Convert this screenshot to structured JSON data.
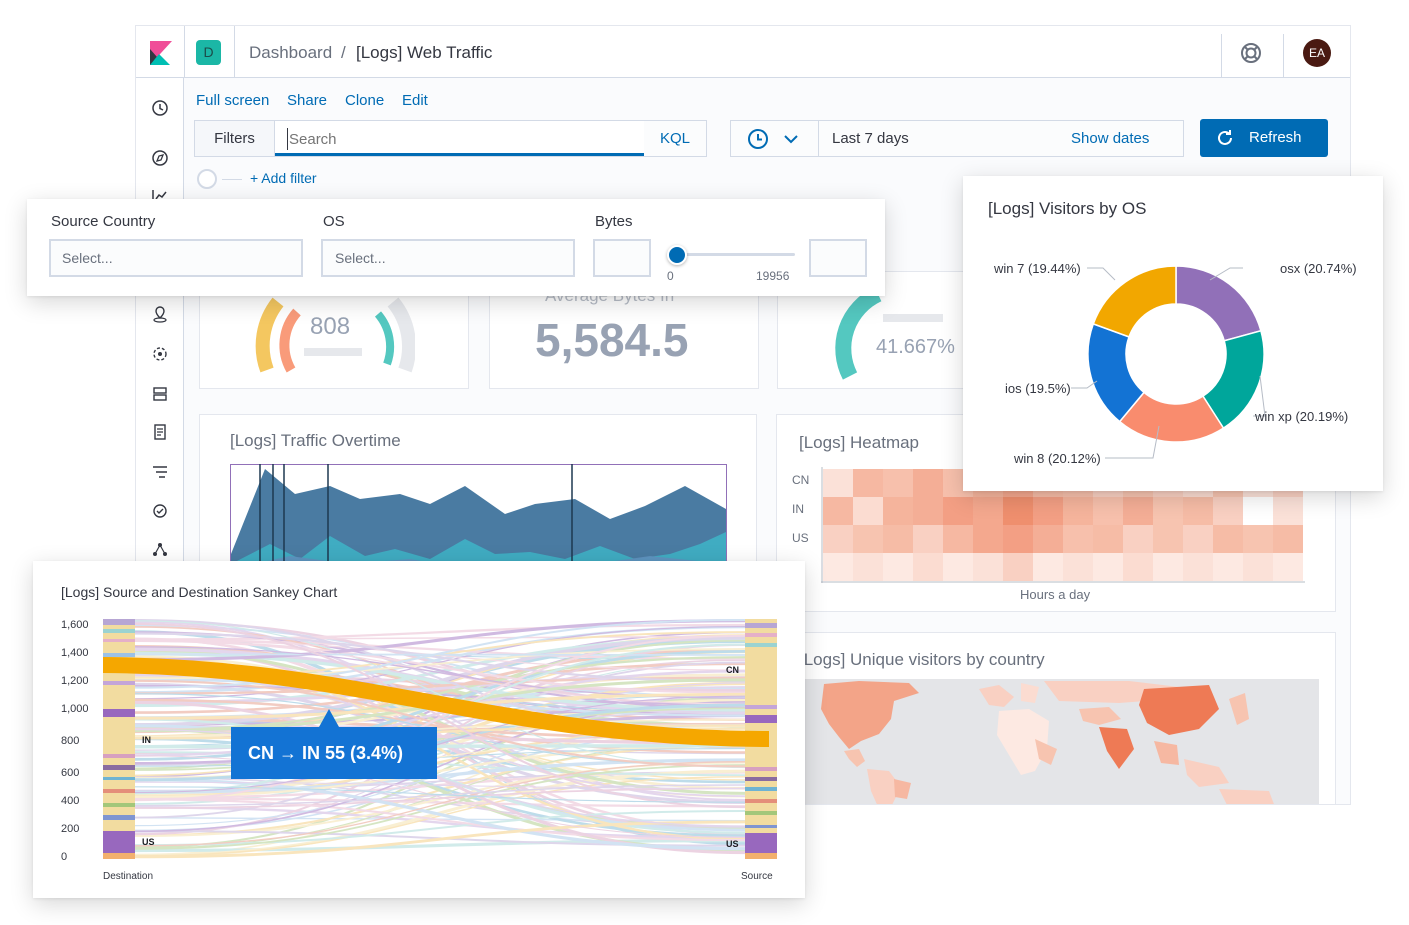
{
  "header": {
    "space_badge": "D",
    "breadcrumb_root": "Dashboard",
    "breadcrumb_sep": "/",
    "breadcrumb_current": "[Logs] Web Traffic",
    "avatar": "EA"
  },
  "toolbar": {
    "links": [
      "Full screen",
      "Share",
      "Clone",
      "Edit"
    ]
  },
  "query": {
    "filters_label": "Filters",
    "search_placeholder": "Search",
    "language": "KQL",
    "time_range": "Last 7 days",
    "show_dates": "Show dates",
    "refresh": "Refresh",
    "add_filter": "+ Add filter"
  },
  "controls": {
    "source_country_label": "Source Country",
    "source_country_placeholder": "Select...",
    "os_label": "OS",
    "os_placeholder": "Select...",
    "bytes_label": "Bytes",
    "bytes_min": "0",
    "bytes_max": "19956",
    "bytes_value": 0
  },
  "metrics": {
    "gauge1_value": "808",
    "avg_bytes_label": "Average Bytes In",
    "avg_bytes_value": "5,584.5",
    "gauge2_value": "41.667%"
  },
  "traffic": {
    "title": "[Logs] Traffic Overtime"
  },
  "heatmap": {
    "title": "[Logs] Heatmap",
    "rows": [
      "CN",
      "IN",
      "US"
    ],
    "xlabel": "Hours a day"
  },
  "map": {
    "title": "[Logs] Unique visitors by country"
  },
  "os_donut": {
    "title": "[Logs] Visitors by OS",
    "colors": [
      "#9170b8",
      "#00a69b",
      "#f98c6e",
      "#1373d4",
      "#f2a700"
    ]
  },
  "sankey": {
    "title": "[Logs] Source and Destination Sankey Chart",
    "yticks": [
      "1,600",
      "1,400",
      "1,200",
      "1,000",
      "800",
      "600",
      "400",
      "200",
      "0"
    ],
    "left_axis": "Destination",
    "right_axis": "Source",
    "left_nodes": [
      "IN",
      "US"
    ],
    "right_nodes": [
      "CN",
      "US"
    ],
    "tooltip": "CN → IN 55 (3.4%)"
  },
  "chart_data": {
    "type": "pie",
    "title": "[Logs] Visitors by OS",
    "categories": [
      "osx",
      "win xp",
      "win 8",
      "ios",
      "win 7"
    ],
    "values": [
      20.74,
      20.19,
      20.12,
      19.5,
      19.44
    ],
    "labels": [
      "osx (20.74%)",
      "win xp (20.19%)",
      "win 8 (20.12%)",
      "ios (19.5%)",
      "win 7 (19.44%)"
    ]
  }
}
